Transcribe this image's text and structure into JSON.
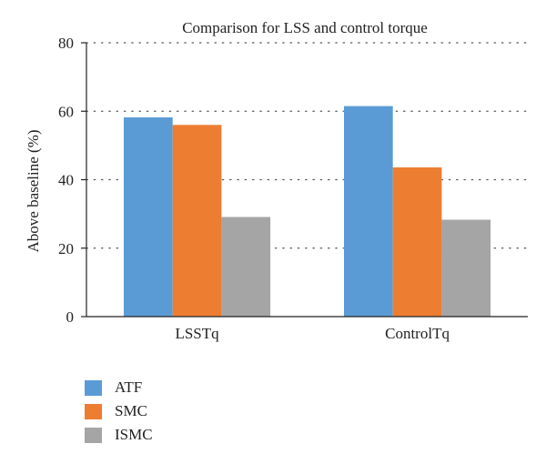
{
  "chart_data": {
    "type": "bar",
    "title": "Comparison for LSS and control torque",
    "xlabel": "",
    "ylabel": "Above baseline (%)",
    "ylim": [
      0,
      80
    ],
    "yticks": [
      0,
      20,
      40,
      60,
      80
    ],
    "grid": "dotted horizontal",
    "legend_position": "bottom-left",
    "categories": [
      "LSSTq",
      "ControlTq"
    ],
    "series": [
      {
        "name": "ATF",
        "color": "#5b9bd5",
        "values": [
          58.2,
          61.5
        ]
      },
      {
        "name": "SMC",
        "color": "#ed7d31",
        "values": [
          56.0,
          43.6
        ]
      },
      {
        "name": "ISMC",
        "color": "#a5a5a5",
        "values": [
          29.1,
          28.3
        ]
      }
    ]
  }
}
